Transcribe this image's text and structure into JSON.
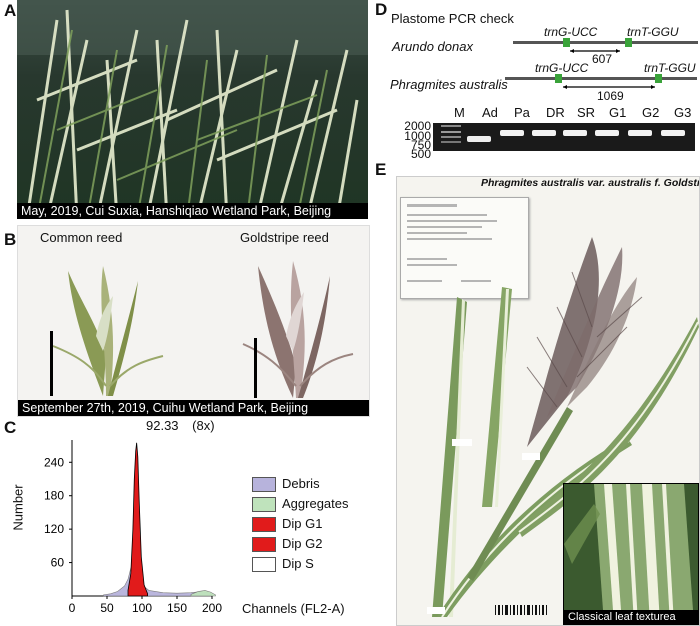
{
  "panels": {
    "A": {
      "label": "A",
      "caption": "May, 2019, Cui Suxia, Hanshiqiao Wetland Park, Beijing"
    },
    "B": {
      "label": "B",
      "left_title": "Common reed",
      "right_title": "Goldstripe reed",
      "caption": "September 27th, 2019, Cuihu Wetland Park, Beijing"
    },
    "C": {
      "label": "C",
      "peak_label": "92.33",
      "peak_fold": "(8x)",
      "ylabel": "Number",
      "xlabel": "Channels (FL2-A)",
      "legend": [
        "Debris",
        "Aggregates",
        "Dip G1",
        "Dip G2",
        "Dip S"
      ],
      "legend_colors": [
        "#b7b3dc",
        "#bfe3bc",
        "#e11b1b",
        "#e11b1b",
        "#ffffff"
      ]
    },
    "D": {
      "label": "D",
      "title": "Plastome PCR check",
      "species1": "Arundo donax",
      "species2": "Phragmites australis",
      "gene_left": "trnG-UCC",
      "gene_right": "trnT-GGU",
      "size1": "607",
      "size2": "1069",
      "gel": {
        "ladder_name": "M",
        "lanes": [
          "Ad",
          "Pa",
          "DR",
          "SR",
          "G1",
          "G2",
          "G3"
        ],
        "ladder_sizes": [
          "2000",
          "1000",
          "750",
          "500"
        ]
      }
    },
    "E": {
      "label": "E",
      "title": "Phragmites australis var. australis f. Goldstripe",
      "inset_caption": "Classical leaf texturea"
    }
  },
  "chart_data": {
    "type": "area",
    "title": "",
    "xlabel": "Channels (FL2-A)",
    "ylabel": "Number",
    "xlim": [
      0,
      200
    ],
    "ylim": [
      0,
      280
    ],
    "x_ticks": [
      0,
      50,
      100,
      150,
      200
    ],
    "y_ticks": [
      60,
      120,
      180,
      240
    ],
    "annotation": "92.33 (8x)",
    "series": [
      {
        "name": "Debris",
        "x": [
          45,
          55,
          65,
          75,
          80,
          84,
          100,
          110,
          130,
          150,
          170,
          185,
          195,
          200
        ],
        "y": [
          2,
          4,
          8,
          18,
          30,
          50,
          20,
          10,
          6,
          5,
          6,
          8,
          6,
          3
        ]
      },
      {
        "name": "Aggregates",
        "x": [
          170,
          180,
          190,
          198,
          205
        ],
        "y": [
          3,
          8,
          10,
          7,
          2
        ]
      },
      {
        "name": "Dip G1",
        "x": [
          80,
          84,
          87,
          89,
          91,
          92.33,
          94,
          96,
          99,
          103,
          108
        ],
        "y": [
          10,
          40,
          120,
          210,
          260,
          275,
          250,
          170,
          70,
          20,
          4
        ]
      }
    ]
  }
}
